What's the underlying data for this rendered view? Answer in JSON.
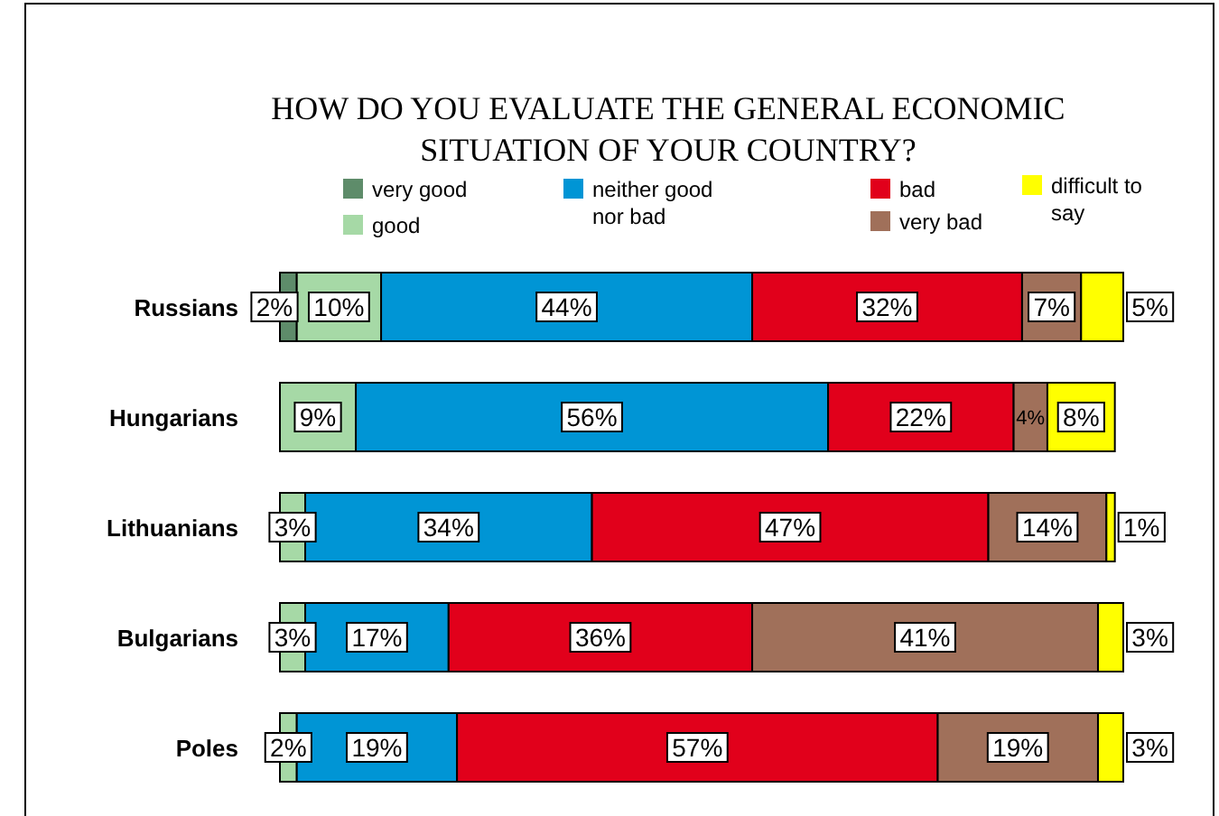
{
  "chart_data": {
    "type": "bar",
    "orientation": "horizontal",
    "stacked": true,
    "title": "HOW DO YOU EVALUATE THE GENERAL ECONOMIC SITUATION OF YOUR COUNTRY?",
    "categories": [
      "Russians",
      "Hungarians",
      "Lithuanians",
      "Bulgarians",
      "Poles"
    ],
    "legend": "top",
    "series": [
      {
        "name": "very good",
        "color": "#5e8c6a",
        "values": [
          2,
          null,
          null,
          null,
          null
        ],
        "value_labels": [
          "2%",
          null,
          null,
          null,
          null
        ]
      },
      {
        "name": "good",
        "color": "#a6d9a6",
        "values": [
          10,
          9,
          3,
          3,
          2
        ],
        "value_labels": [
          "10%",
          "9%",
          "3%",
          "3%",
          "2%"
        ]
      },
      {
        "name": "neither good nor bad",
        "color": "#0095d5",
        "values": [
          44,
          56,
          34,
          17,
          19
        ],
        "value_labels": [
          "44%",
          "56%",
          "34%",
          "17%",
          "19%"
        ]
      },
      {
        "name": "bad",
        "color": "#e1001b",
        "values": [
          32,
          22,
          47,
          36,
          57
        ],
        "value_labels": [
          "32%",
          "22%",
          "47%",
          "36%",
          "57%"
        ]
      },
      {
        "name": "very bad",
        "color": "#a0705a",
        "values": [
          7,
          4,
          14,
          41,
          19
        ],
        "value_labels": [
          "7%",
          "4%",
          "14%",
          "41%",
          "19%"
        ]
      },
      {
        "name": "difficult to say",
        "color": "#ffff00",
        "values": [
          5,
          8,
          1,
          3,
          3
        ],
        "value_labels": [
          "5%",
          "8%",
          "1%",
          "3%",
          "3%"
        ]
      }
    ]
  }
}
